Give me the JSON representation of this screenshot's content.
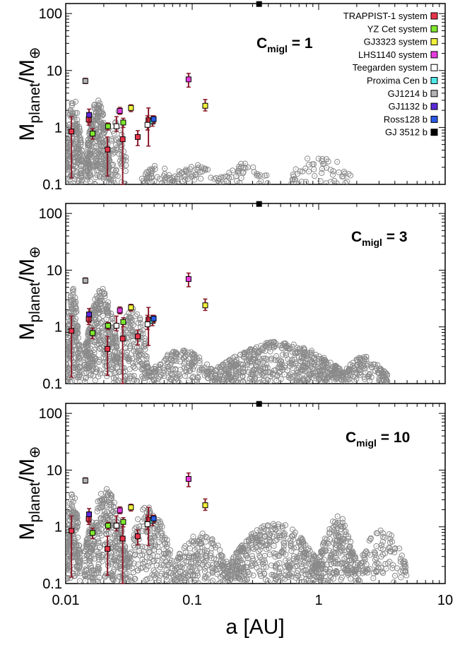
{
  "figure": {
    "xlabel": "a [AU]",
    "ylabel_main": "M",
    "ylabel_sub1": "planet",
    "ylabel_mid": "/M",
    "ylabel_sub2": "⊕"
  },
  "legend": [
    {
      "label": "TRAPPIST-1 system",
      "color": "#e8344a"
    },
    {
      "label": "YZ Cet system",
      "color": "#7fe82e"
    },
    {
      "label": "GJ3323 system",
      "color": "#f0f03c"
    },
    {
      "label": "LHS1140 system",
      "color": "#e83ce0"
    },
    {
      "label": "Teegarden system",
      "color": "#ffffff"
    },
    {
      "label": "Proxima Cen b",
      "color": "#4ee8e8"
    },
    {
      "label": "GJ1214 b",
      "color": "#b4b4b4"
    },
    {
      "label": "GJ1132 b",
      "color": "#5a2ad8"
    },
    {
      "label": "Ross128 b",
      "color": "#2a5ae8"
    },
    {
      "label": "GJ 3512 b",
      "color": "#000000"
    }
  ],
  "colors": {
    "simulated": "#8a8a8a",
    "errorbar": "#8b1a2a"
  },
  "chart_data": [
    {
      "type": "scatter",
      "annotation_main": "C",
      "annotation_sub": "migl",
      "annotation_value": " = 1",
      "xscale": "log",
      "yscale": "log",
      "xlim": [
        0.01,
        10
      ],
      "ylim": [
        0.1,
        150
      ],
      "xticks": [
        "0.01",
        "0.1",
        "1",
        "10"
      ],
      "yticks": [
        "0.1",
        "1",
        "10",
        "100"
      ],
      "simulated_population": {
        "marker": "open-circle",
        "clusters": [
          {
            "a_range": [
              0.01,
              0.0135
            ],
            "mass_range": [
              0.1,
              3.5
            ],
            "n": 180
          },
          {
            "a_range": [
              0.0145,
              0.022
            ],
            "mass_range": [
              0.1,
              3.2
            ],
            "n": 260
          },
          {
            "a_range": [
              0.022,
              0.03
            ],
            "mass_range": [
              0.1,
              2.0
            ],
            "n": 60
          },
          {
            "a_range": [
              0.04,
              0.07
            ],
            "mass_range": [
              0.1,
              0.22
            ],
            "n": 40
          },
          {
            "a_range": [
              0.07,
              0.18
            ],
            "mass_range": [
              0.1,
              0.25
            ],
            "n": 50
          },
          {
            "a_range": [
              0.18,
              0.4
            ],
            "mass_range": [
              0.1,
              0.25
            ],
            "n": 35
          },
          {
            "a_range": [
              0.6,
              1.8
            ],
            "mass_range": [
              0.1,
              0.35
            ],
            "n": 50
          }
        ]
      }
    },
    {
      "type": "scatter",
      "annotation_main": "C",
      "annotation_sub": "migl",
      "annotation_value": " = 3",
      "xscale": "log",
      "yscale": "log",
      "xlim": [
        0.01,
        10
      ],
      "ylim": [
        0.1,
        150
      ],
      "xticks": [
        "0.01",
        "0.1",
        "1",
        "10"
      ],
      "yticks": [
        "0.1",
        "1",
        "10",
        "100"
      ],
      "simulated_population": {
        "marker": "open-circle",
        "clusters": [
          {
            "a_range": [
              0.01,
              0.013
            ],
            "mass_range": [
              0.1,
              4.8
            ],
            "n": 170
          },
          {
            "a_range": [
              0.014,
              0.026
            ],
            "mass_range": [
              0.1,
              5.0
            ],
            "n": 320
          },
          {
            "a_range": [
              0.026,
              0.045
            ],
            "mass_range": [
              0.1,
              2.5
            ],
            "n": 150
          },
          {
            "a_range": [
              0.045,
              0.15
            ],
            "mass_range": [
              0.1,
              0.4
            ],
            "n": 160
          },
          {
            "a_range": [
              0.15,
              1.5
            ],
            "mass_range": [
              0.1,
              0.55
            ],
            "n": 480
          },
          {
            "a_range": [
              1.5,
              3.5
            ],
            "mass_range": [
              0.1,
              0.3
            ],
            "n": 120
          }
        ]
      }
    },
    {
      "type": "scatter",
      "annotation_main": "C",
      "annotation_sub": "migl",
      "annotation_value": " = 10",
      "xscale": "log",
      "yscale": "log",
      "xlim": [
        0.01,
        10
      ],
      "ylim": [
        0.1,
        150
      ],
      "xticks": [
        "0.01",
        "0.1",
        "1",
        "10"
      ],
      "yticks": [
        "0.1",
        "1",
        "10",
        "100"
      ],
      "simulated_population": {
        "marker": "open-circle",
        "clusters": [
          {
            "a_range": [
              0.01,
              0.013
            ],
            "mass_range": [
              0.1,
              4.5
            ],
            "n": 160
          },
          {
            "a_range": [
              0.014,
              0.03
            ],
            "mass_range": [
              0.1,
              4.8
            ],
            "n": 320
          },
          {
            "a_range": [
              0.03,
              0.07
            ],
            "mass_range": [
              0.1,
              2.5
            ],
            "n": 180
          },
          {
            "a_range": [
              0.07,
              0.2
            ],
            "mass_range": [
              0.1,
              0.8
            ],
            "n": 200
          },
          {
            "a_range": [
              0.2,
              1.0
            ],
            "mass_range": [
              0.1,
              1.3
            ],
            "n": 380
          },
          {
            "a_range": [
              1.0,
              2.0
            ],
            "mass_range": [
              0.1,
              1.6
            ],
            "n": 200
          },
          {
            "a_range": [
              2.0,
              5.0
            ],
            "mass_range": [
              0.1,
              0.9
            ],
            "n": 110
          }
        ]
      }
    }
  ],
  "observed_planets": [
    {
      "system": "TRAPPIST-1",
      "color": "#e8344a",
      "a": 0.0111,
      "m": 0.85,
      "lo": 0.13,
      "hi": 1.55
    },
    {
      "system": "TRAPPIST-1",
      "color": "#e8344a",
      "a": 0.0152,
      "m": 1.38,
      "lo": 1.1,
      "hi": 1.7
    },
    {
      "system": "TRAPPIST-1",
      "color": "#e8344a",
      "a": 0.0214,
      "m": 0.41,
      "lo": 0.14,
      "hi": 0.68
    },
    {
      "system": "TRAPPIST-1",
      "color": "#e8344a",
      "a": 0.0282,
      "m": 0.62,
      "lo": 0.1,
      "hi": 1.15
    },
    {
      "system": "TRAPPIST-1",
      "color": "#e8344a",
      "a": 0.0371,
      "m": 0.68,
      "lo": 0.48,
      "hi": 0.88
    },
    {
      "system": "TRAPPIST-1",
      "color": "#e8344a",
      "a": 0.0451,
      "m": 1.34,
      "lo": 0.47,
      "hi": 2.2
    },
    {
      "system": "YZ Cet",
      "color": "#7fe82e",
      "a": 0.0163,
      "m": 0.78,
      "lo": 0.62,
      "hi": 0.95
    },
    {
      "system": "YZ Cet",
      "color": "#7fe82e",
      "a": 0.0216,
      "m": 1.05,
      "lo": 0.9,
      "hi": 1.2
    },
    {
      "system": "YZ Cet",
      "color": "#7fe82e",
      "a": 0.0285,
      "m": 1.22,
      "lo": 1.0,
      "hi": 1.45
    },
    {
      "system": "GJ3323",
      "color": "#f0f03c",
      "a": 0.0328,
      "m": 2.2,
      "lo": 1.9,
      "hi": 2.5
    },
    {
      "system": "GJ3323",
      "color": "#f0f03c",
      "a": 0.1268,
      "m": 2.4,
      "lo": 1.95,
      "hi": 3.1
    },
    {
      "system": "LHS1140",
      "color": "#e83ce0",
      "a": 0.0268,
      "m": 1.95,
      "lo": 1.7,
      "hi": 2.25
    },
    {
      "system": "LHS1140",
      "color": "#e83ce0",
      "a": 0.0936,
      "m": 6.98,
      "lo": 5.1,
      "hi": 8.9
    },
    {
      "system": "Teegarden",
      "color": "#ffffff",
      "a": 0.0252,
      "m": 1.05,
      "lo": 0.85,
      "hi": 1.55
    },
    {
      "system": "Teegarden",
      "color": "#ffffff",
      "a": 0.0443,
      "m": 1.11,
      "lo": 0.9,
      "hi": 1.6
    },
    {
      "system": "Proxima Cen b",
      "color": "#4ee8e8",
      "a": 0.0485,
      "m": 1.27,
      "lo": 1.05,
      "hi": 1.6
    },
    {
      "system": "GJ1214 b",
      "color": "#b4b4b4",
      "a": 0.0143,
      "m": 6.55,
      "lo": 5.9,
      "hi": 7.3
    },
    {
      "system": "GJ1132 b",
      "color": "#5a2ad8",
      "a": 0.0153,
      "m": 1.66,
      "lo": 1.2,
      "hi": 2.1
    },
    {
      "system": "Ross128 b",
      "color": "#2a5ae8",
      "a": 0.0496,
      "m": 1.4,
      "lo": 1.2,
      "hi": 1.6
    },
    {
      "system": "GJ 3512 b",
      "color": "#000000",
      "a": 0.338,
      "m": 147,
      "lo": 147,
      "hi": 147
    }
  ]
}
